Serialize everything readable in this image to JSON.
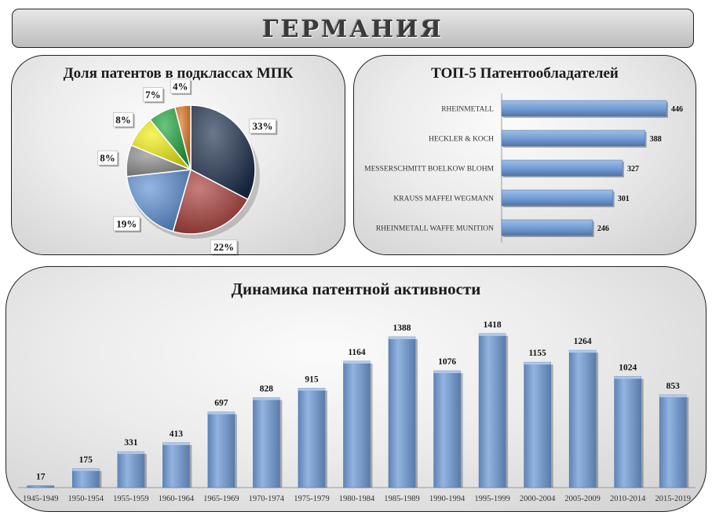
{
  "header": {
    "title": "ГЕРМАНИЯ"
  },
  "chart_data": [
    {
      "type": "pie",
      "title": "Доля патентов в подклассах МПК",
      "values": [
        33,
        22,
        19,
        8,
        8,
        7,
        4
      ],
      "labels": [
        "33%",
        "22%",
        "19%",
        "8%",
        "8%",
        "7%",
        "4%"
      ],
      "colors": [
        "#1c2e4c",
        "#a83a36",
        "#5b8fd4",
        "#8c8c8c",
        "#f2ef0a",
        "#1aa33a",
        "#e2731c"
      ]
    },
    {
      "type": "bar",
      "orientation": "horizontal",
      "title": "ТОП-5 Патентообладателей",
      "categories": [
        "RHEINMETALL",
        "HECKLER & KOCH",
        "MESSERSCHMITT BOELKOW BLOHM",
        "KRAUSS MAFFEI WEGMANN",
        "RHEINMETALL  WAFFE MUNITION"
      ],
      "values": [
        446,
        388,
        327,
        301,
        246
      ],
      "color": "#6f9bd6"
    },
    {
      "type": "bar",
      "title": "Динамика патентной активности",
      "categories": [
        "1945-1949",
        "1950-1954",
        "1955-1959",
        "1960-1964",
        "1965-1969",
        "1970-1974",
        "1975-1979",
        "1980-1984",
        "1985-1989",
        "1990-1994",
        "1995-1999",
        "2000-2004",
        "2005-2009",
        "2010-2014",
        "2015-2019"
      ],
      "values": [
        17,
        175,
        331,
        413,
        697,
        828,
        915,
        1164,
        1388,
        1076,
        1418,
        1155,
        1264,
        1024,
        853
      ],
      "color": "#6f9bd6"
    }
  ]
}
